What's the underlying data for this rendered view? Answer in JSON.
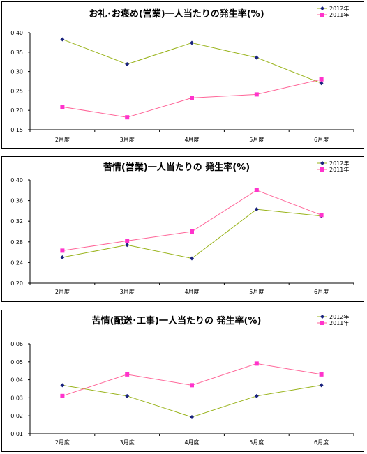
{
  "chart_data": [
    {
      "type": "line",
      "title": "お礼･お褒め(営業)一人当たりの発生率(%)",
      "categories": [
        "2月度",
        "3月度",
        "4月度",
        "5月度",
        "6月度"
      ],
      "ylim": [
        0.15,
        0.4
      ],
      "yticks": [
        "0.40",
        "0.35",
        "0.30",
        "0.25",
        "0.20",
        "0.15"
      ],
      "ytick_values": [
        0.4,
        0.35,
        0.3,
        0.25,
        0.2,
        0.15
      ],
      "grid": false,
      "legend": "top-right",
      "series": [
        {
          "name": "2012年",
          "values": [
            0.383,
            0.319,
            0.374,
            0.336,
            0.27
          ],
          "color": "#99b31a",
          "marker": "diamond",
          "marker_color": "#1a237e"
        },
        {
          "name": "2011年",
          "values": [
            0.209,
            0.182,
            0.232,
            0.241,
            0.28
          ],
          "color": "#ff6699",
          "marker": "square",
          "marker_color": "#ff33cc"
        }
      ]
    },
    {
      "type": "line",
      "title": "苦情(営業)一人当たりの 発生率(%)",
      "categories": [
        "2月度",
        "3月度",
        "4月度",
        "5月度",
        "6月度"
      ],
      "ylim": [
        0.2,
        0.4
      ],
      "yticks": [
        "0.40",
        "0.36",
        "0.32",
        "0.28",
        "0.24",
        "0.20"
      ],
      "ytick_values": [
        0.4,
        0.36,
        0.32,
        0.28,
        0.24,
        0.2
      ],
      "grid": false,
      "legend": "top-right",
      "series": [
        {
          "name": "2012年",
          "values": [
            0.25,
            0.274,
            0.248,
            0.343,
            0.33
          ],
          "color": "#99b31a",
          "marker": "diamond",
          "marker_color": "#1a237e"
        },
        {
          "name": "2011年",
          "values": [
            0.263,
            0.282,
            0.3,
            0.38,
            0.332
          ],
          "color": "#ff6699",
          "marker": "square",
          "marker_color": "#ff33cc"
        }
      ]
    },
    {
      "type": "line",
      "title": "苦情(配送･工事)一人当たりの 発生率(%)",
      "categories": [
        "2月度",
        "3月度",
        "4月度",
        "5月度",
        "6月度"
      ],
      "ylim": [
        0.01,
        0.06
      ],
      "yticks": [
        "0.06",
        "0.05",
        "0.04",
        "0.03",
        "0.02",
        "0.01"
      ],
      "ytick_values": [
        0.06,
        0.05,
        0.04,
        0.03,
        0.02,
        0.01
      ],
      "grid": false,
      "legend": "top-right",
      "series": [
        {
          "name": "2012年",
          "values": [
            0.037,
            0.031,
            0.0193,
            0.031,
            0.037
          ],
          "color": "#99b31a",
          "marker": "diamond",
          "marker_color": "#1a237e"
        },
        {
          "name": "2011年",
          "values": [
            0.031,
            0.043,
            0.037,
            0.049,
            0.043
          ],
          "color": "#ff6699",
          "marker": "square",
          "marker_color": "#ff33cc"
        }
      ]
    }
  ]
}
